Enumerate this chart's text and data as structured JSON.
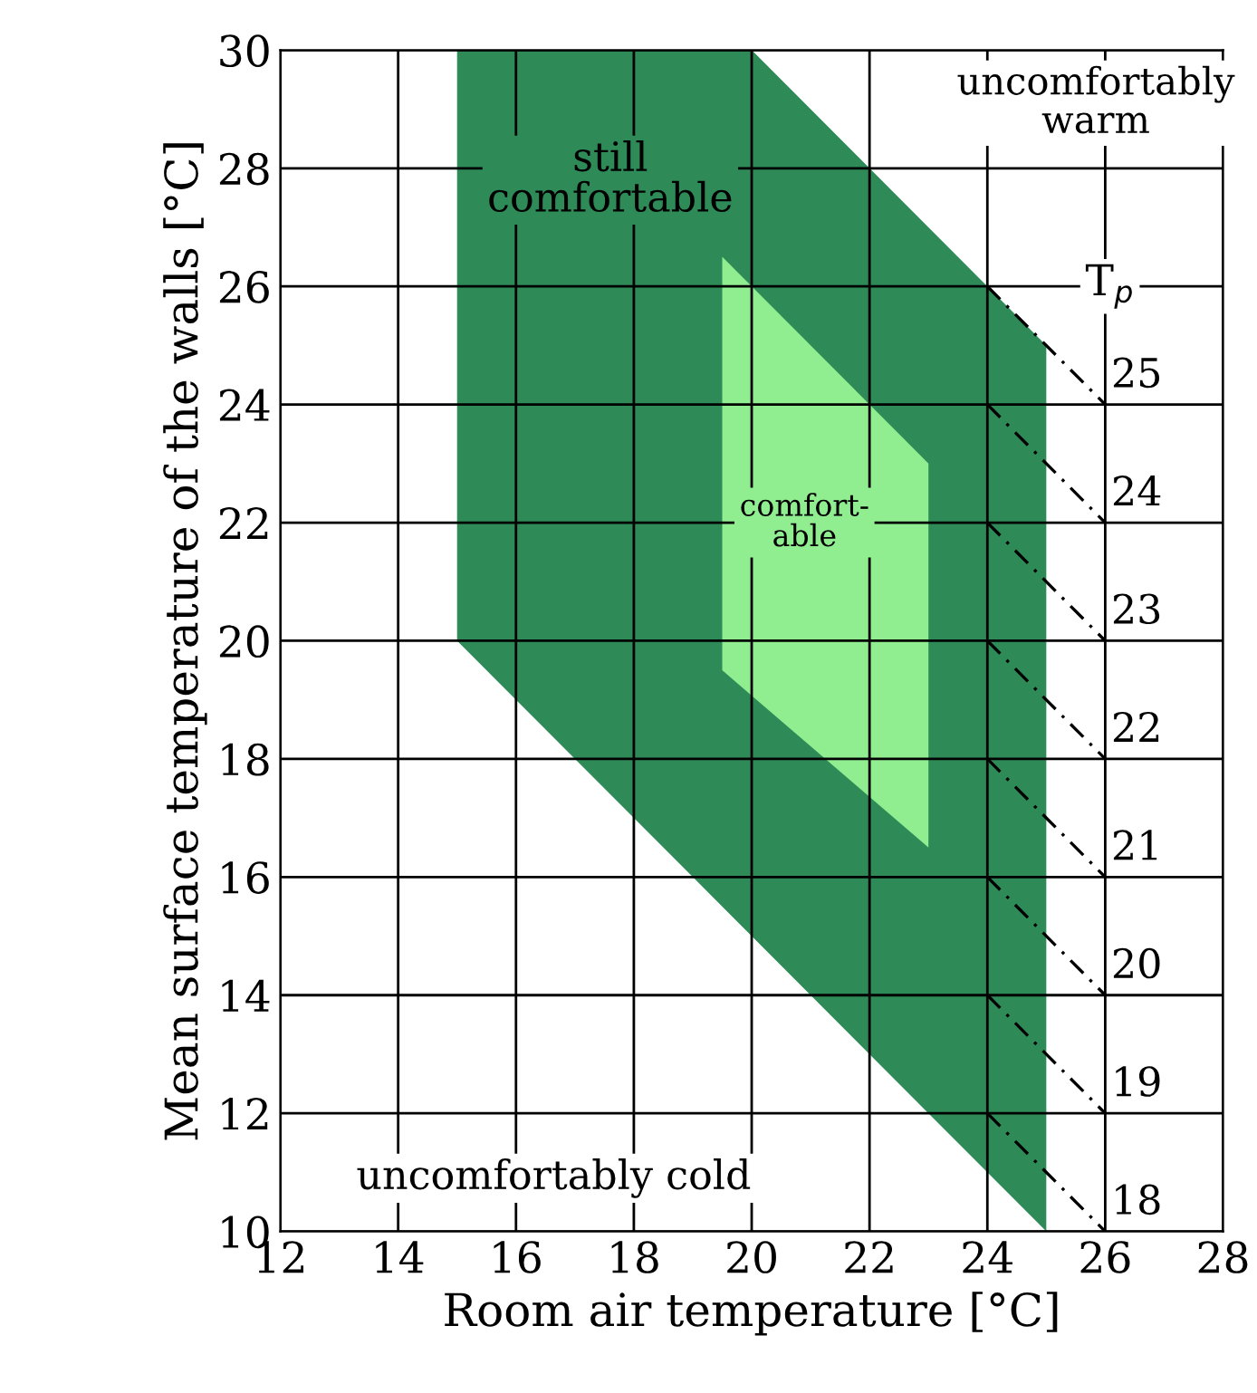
{
  "chart_data": {
    "type": "area",
    "xlabel": "Room air temperature [°C]",
    "ylabel": "Mean surface temperature of the walls [°C]",
    "xlim": [
      12,
      28
    ],
    "ylim": [
      10,
      30
    ],
    "xticks": [
      12,
      14,
      16,
      18,
      20,
      22,
      24,
      26,
      28
    ],
    "yticks": [
      10,
      12,
      14,
      16,
      18,
      20,
      22,
      24,
      26,
      28,
      30
    ],
    "grid": true,
    "series": [
      {
        "color": "#2e8b57",
        "x": [
          15,
          20,
          25
        ],
        "values": [
          null,
          null,
          null
        ],
        "lower": [
          20,
          15,
          10
        ],
        "upper": [
          30,
          30,
          25
        ]
      },
      {
        "color": "#90ee90",
        "x": [
          19.5,
          23
        ],
        "values": [
          null,
          null
        ],
        "lower": [
          19.5,
          16.5
        ],
        "upper": [
          26.5,
          23
        ]
      },
      {
        "type": "line",
        "name": "25",
        "color": "#000000",
        "line_style": "dashed",
        "x": [
          24,
          26
        ],
        "values": [
          26,
          24
        ]
      },
      {
        "type": "line",
        "name": "24",
        "color": "#000000",
        "line_style": "dashed",
        "x": [
          24,
          26
        ],
        "values": [
          24,
          22
        ]
      },
      {
        "type": "line",
        "name": "23",
        "color": "#000000",
        "line_style": "dashed",
        "x": [
          24,
          26
        ],
        "values": [
          22,
          20
        ]
      },
      {
        "type": "line",
        "name": "22",
        "color": "#000000",
        "line_style": "dashed",
        "x": [
          24,
          26
        ],
        "values": [
          20,
          18
        ]
      },
      {
        "type": "line",
        "name": "21",
        "color": "#000000",
        "line_style": "dashed",
        "x": [
          24,
          26
        ],
        "values": [
          18,
          16
        ]
      },
      {
        "type": "line",
        "name": "20",
        "color": "#000000",
        "line_style": "dashed",
        "x": [
          24,
          26
        ],
        "values": [
          16,
          14
        ]
      },
      {
        "type": "line",
        "name": "19",
        "color": "#000000",
        "line_style": "dashed",
        "x": [
          24,
          26
        ],
        "values": [
          14,
          12
        ]
      },
      {
        "type": "line",
        "name": "18",
        "color": "#000000",
        "line_style": "dashed",
        "x": [
          24,
          26
        ],
        "values": [
          12,
          10
        ]
      }
    ],
    "annotations": [
      "still\ncomfortable",
      "comfort-\nable",
      "uncomfortably\nwarm",
      "uncomfortably cold",
      "T$_{p}$"
    ]
  }
}
